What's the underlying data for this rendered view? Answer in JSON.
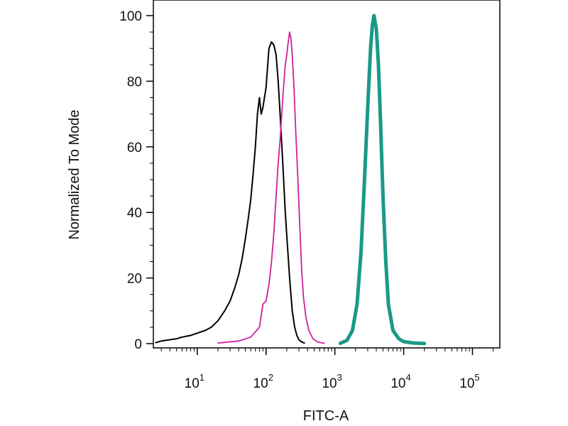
{
  "chart_data": {
    "type": "line",
    "title": "",
    "xlabel": "FITC-A",
    "ylabel": "Normalized To Mode",
    "x_scale": "log",
    "xlim": [
      2.3,
      250000
    ],
    "ylim": [
      0,
      100
    ],
    "y_ticks": [
      0,
      20,
      40,
      60,
      80,
      100
    ],
    "x_ticks": [
      {
        "base": "10",
        "exp": "1",
        "value": 10
      },
      {
        "base": "10",
        "exp": "2",
        "value": 100
      },
      {
        "base": "10",
        "exp": "3",
        "value": 1000
      },
      {
        "base": "10",
        "exp": "4",
        "value": 10000
      },
      {
        "base": "10",
        "exp": "5",
        "value": 100000
      }
    ],
    "grid": false,
    "legend": "none",
    "series": [
      {
        "color": "#000000",
        "x": [
          2.5,
          3,
          4,
          5,
          6,
          8,
          10,
          13,
          16,
          20,
          25,
          30,
          35,
          40,
          45,
          50,
          55,
          60,
          65,
          70,
          75,
          80,
          85,
          90,
          100,
          110,
          120,
          130,
          140,
          150,
          160,
          175,
          190,
          200,
          220,
          240,
          260,
          280,
          300,
          330,
          360
        ],
        "y": [
          0.3,
          0.8,
          1.2,
          1.5,
          2,
          2.5,
          3.2,
          4,
          5,
          7,
          10,
          13,
          17,
          21,
          26,
          32,
          38,
          44,
          52,
          60,
          70,
          75,
          70,
          72,
          78,
          90,
          92,
          91,
          88,
          80,
          70,
          55,
          40,
          33,
          20,
          10,
          5,
          2.5,
          1.2,
          0.5,
          0.2
        ]
      },
      {
        "color": "#cc2299",
        "x": [
          20,
          40,
          60,
          80,
          90,
          100,
          110,
          120,
          130,
          140,
          150,
          160,
          175,
          190,
          200,
          210,
          220,
          230,
          240,
          255,
          270,
          290,
          310,
          330,
          350,
          380,
          420,
          480,
          560,
          700
        ],
        "y": [
          0.2,
          0.8,
          2,
          5,
          12,
          13,
          18,
          25,
          34,
          45,
          55,
          62,
          75,
          85,
          88,
          92,
          95,
          93,
          88,
          78,
          65,
          50,
          35,
          22,
          14,
          8,
          4,
          1.5,
          0.5,
          0.1
        ]
      },
      {
        "color": "#1a9a86",
        "x": [
          1200,
          1500,
          1800,
          2100,
          2400,
          2700,
          3000,
          3300,
          3500,
          3700,
          4000,
          4300,
          4600,
          5000,
          5500,
          6000,
          7000,
          8500,
          10000,
          14000,
          20000
        ],
        "y": [
          0.1,
          1,
          4,
          12,
          28,
          50,
          72,
          90,
          97,
          100,
          96,
          85,
          68,
          45,
          25,
          12,
          4,
          1.5,
          0.6,
          0.2,
          0.05
        ]
      }
    ]
  }
}
